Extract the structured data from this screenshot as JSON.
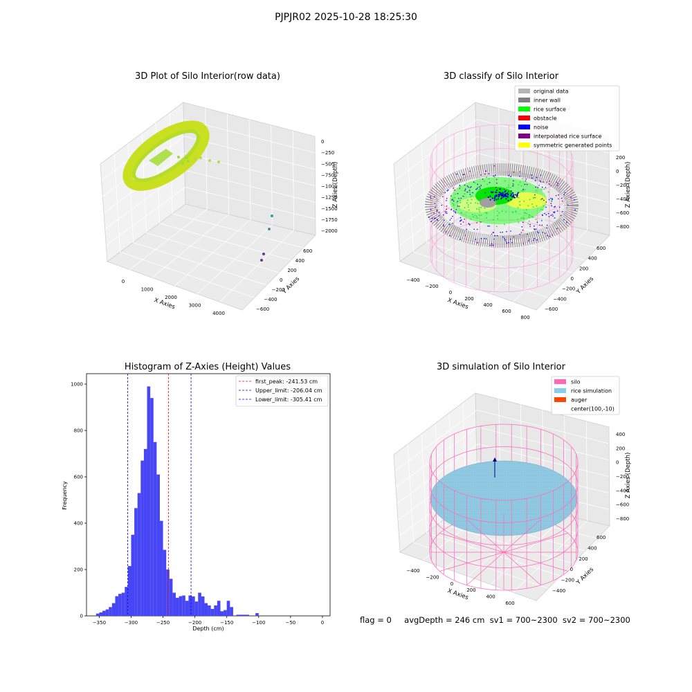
{
  "suptitle": "PJPJR02 2025-10-28 18:25:30",
  "footer": {
    "flag": "flag = 0",
    "avg_depth": "avgDepth = 246 cm",
    "sv1": "sv1 = 700~2300",
    "sv2": "sv2 = 700~2300"
  },
  "chart_data": [
    {
      "type": "scatter3d",
      "title": "3D Plot of Silo Interior(row data)",
      "xlabel": "X Axies",
      "ylabel": "Y Axies",
      "zlabel": "Z Axies (Depth)",
      "x_ticks": [
        "0",
        "1000",
        "2000",
        "3000",
        "4000"
      ],
      "y_ticks": [
        "−600",
        "−400",
        "−200",
        "0",
        "200",
        "400",
        "600"
      ],
      "z_ticks": [
        "0",
        "−250",
        "−500",
        "−750",
        "−1000",
        "−1250",
        "−1500",
        "−1750",
        "−2000"
      ],
      "xlim": [
        -400,
        4400
      ],
      "ylim": [
        -650,
        700
      ],
      "zlim": [
        -2100,
        100
      ],
      "description": "ring of points near z≈-250 with scattered outliers down to z≈-2000",
      "colors": {
        "ring": "#c8e020",
        "ring_inner": "#9fd840",
        "outlier_teal": "#3a9a8a",
        "outlier_purple": "#6a3a8a"
      }
    },
    {
      "type": "scatter3d",
      "title": "3D classify of Silo Interior",
      "xlabel": "X Axies",
      "ylabel": "Y Axies",
      "zlabel": "Z Axies (Depth)",
      "x_ticks": [
        "−400",
        "−200",
        "0",
        "200",
        "400",
        "600",
        "800"
      ],
      "y_ticks": [
        "−600",
        "−400",
        "−200",
        "0",
        "200",
        "400",
        "600"
      ],
      "z_ticks": [
        "200",
        "0",
        "−200",
        "−400",
        "−600",
        "−800"
      ],
      "legend": [
        {
          "label": "original data",
          "color": "#b5b5b5"
        },
        {
          "label": "inner wall",
          "color": "#808080"
        },
        {
          "label": "rice surface",
          "color": "#00ff00"
        },
        {
          "label": "obstacle",
          "color": "#ff0000"
        },
        {
          "label": "noise",
          "color": "#0000ff"
        },
        {
          "label": "interpolated rice surface",
          "color": "#800080"
        },
        {
          "label": "symmetric generated points",
          "color": "#ffff00"
        }
      ],
      "legend_position": "upper right"
    },
    {
      "type": "bar",
      "title": "Histogram of Z-Axies (Height) Values",
      "xlabel": "Depth (cm)",
      "ylabel": "Frequency",
      "xlim": [
        -370,
        12
      ],
      "ylim": [
        0,
        1045
      ],
      "x_ticks": [
        -350,
        -300,
        -250,
        -200,
        -150,
        -100,
        -50,
        0
      ],
      "y_ticks": [
        0,
        200,
        400,
        600,
        800,
        1000
      ],
      "bin_start": -355,
      "bin_width": 5,
      "values": [
        10,
        15,
        22,
        28,
        38,
        55,
        85,
        95,
        100,
        125,
        215,
        350,
        465,
        530,
        670,
        720,
        990,
        940,
        750,
        610,
        410,
        285,
        200,
        160,
        100,
        78,
        85,
        88,
        65,
        88,
        84,
        62,
        100,
        84,
        55,
        45,
        30,
        45,
        65,
        20,
        25,
        65,
        38,
        0,
        5,
        5,
        5,
        5,
        0,
        0,
        12
      ],
      "bar_color": "#4646f5",
      "lines": [
        {
          "label": "first_peak: -241.53 cm",
          "x": -241.53,
          "color": "#ff0000"
        },
        {
          "label": "Upper_limit: -206.04 cm",
          "x": -206.04,
          "color": "#0000ff"
        },
        {
          "label": "Lower_limit: -305.41 cm",
          "x": -305.41,
          "color": "#0000ff"
        }
      ],
      "legend_position": "upper right"
    },
    {
      "type": "surface3d",
      "title": "3D simulation of Silo Interior",
      "xlabel": "X Axies",
      "ylabel": "Y Axies",
      "zlabel": "Z Axies (Depth)",
      "x_ticks": [
        "−400",
        "−200",
        "0",
        "200",
        "400",
        "600"
      ],
      "y_ticks": [
        "−400",
        "−200",
        "0",
        "200",
        "400",
        "600"
      ],
      "z_ticks": [
        "400",
        "200",
        "0",
        "−200",
        "−400",
        "−600",
        "−800"
      ],
      "legend": [
        {
          "label": "silo",
          "color": "#ff69b4"
        },
        {
          "label": "rice simulation",
          "color": "#87ceeb"
        },
        {
          "label": "auger",
          "color": "#ff4500"
        },
        {
          "label": "center(100,-10)",
          "color": "none"
        }
      ],
      "legend_position": "upper right"
    }
  ]
}
